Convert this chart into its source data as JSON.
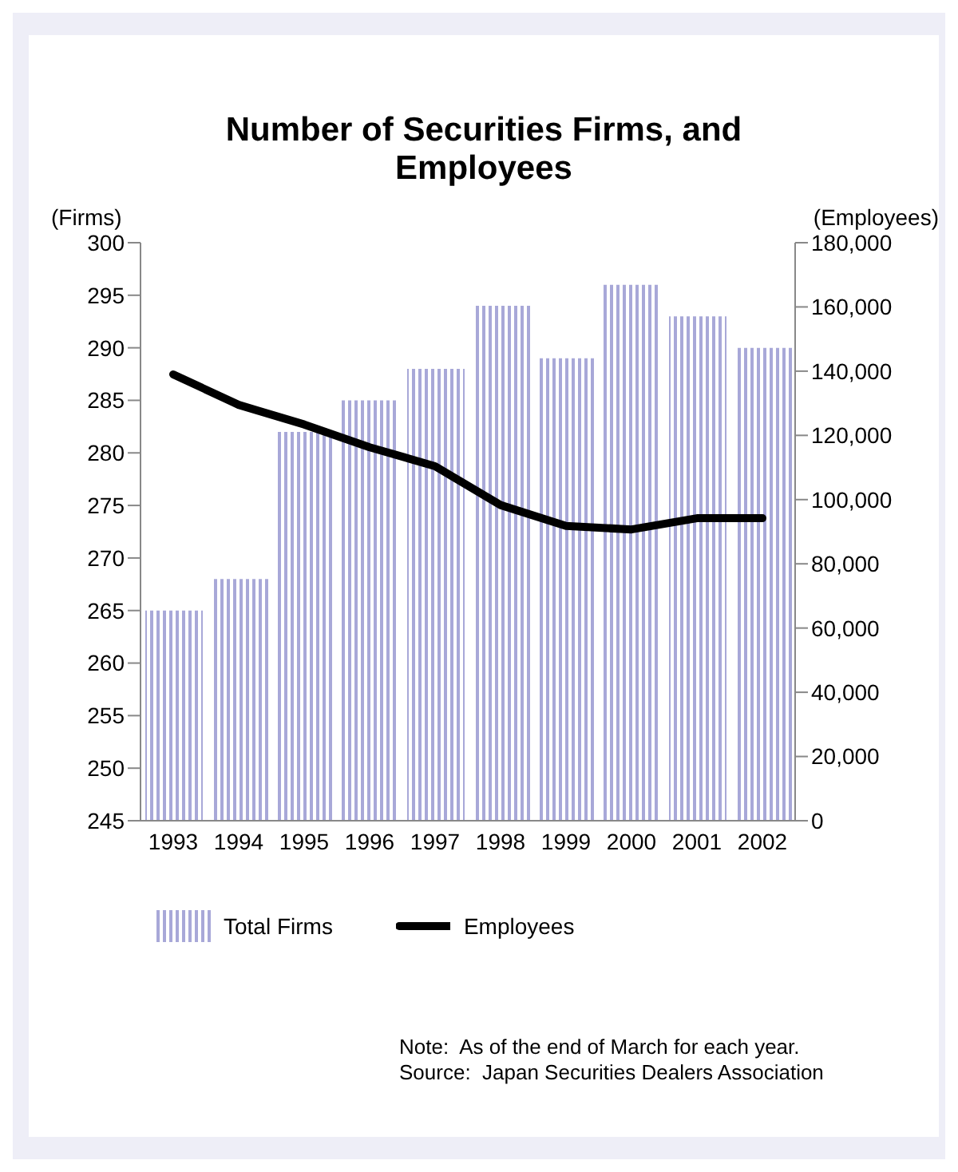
{
  "chart_data": {
    "type": "bar",
    "title": "Number of Securities Firms, and Employees",
    "ylabel": "(Firms)",
    "y2label": "(Employees)",
    "categories": [
      "1993",
      "1994",
      "1995",
      "1996",
      "1997",
      "1998",
      "1999",
      "2000",
      "2001",
      "2002"
    ],
    "series": [
      {
        "name": "Total Firms",
        "color": "#a8a8d8",
        "values": [
          265,
          268,
          282,
          285,
          288,
          294,
          289,
          296,
          293,
          290
        ]
      },
      {
        "name": "Employees",
        "type": "line",
        "axis": "y2",
        "color": "#000000",
        "values": [
          139000,
          129500,
          123400,
          116300,
          110400,
          98300,
          91800,
          90700,
          94200,
          94200
        ]
      }
    ],
    "ylim": [
      245,
      300
    ],
    "yticks": [
      245,
      250,
      255,
      260,
      265,
      270,
      275,
      280,
      285,
      290,
      295,
      300
    ],
    "y2lim": [
      0,
      180000
    ],
    "y2ticks": [
      {
        "value": 0,
        "label": "0"
      },
      {
        "value": 20000,
        "label": "20,000"
      },
      {
        "value": 40000,
        "label": "40,000"
      },
      {
        "value": 60000,
        "label": "60,000"
      },
      {
        "value": 80000,
        "label": "80,000"
      },
      {
        "value": 100000,
        "label": "100,000"
      },
      {
        "value": 120000,
        "label": "120,000"
      },
      {
        "value": 140000,
        "label": "140,000"
      },
      {
        "value": 160000,
        "label": "160,000"
      },
      {
        "value": 180000,
        "label": "180,000"
      }
    ],
    "grid": false,
    "legend": "bottom",
    "marker": "none",
    "line_style": "solid",
    "annotations": [
      "Note:  As of the end of March for each year.",
      "Source:  Japan Securities Dealers Association"
    ]
  }
}
